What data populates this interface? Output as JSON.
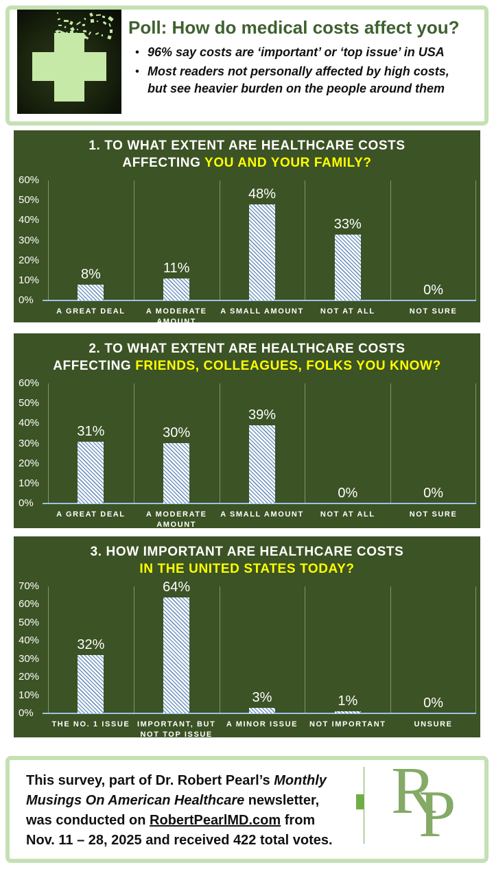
{
  "header": {
    "title": "Poll: How do medical costs affect you?",
    "bullets": [
      "96% say costs are ‘important’ or ‘top issue’ in USA",
      "Most readers not personally affected by high costs, but see heavier burden on the people around them"
    ],
    "logo_icon": "medical-cross-dissolving-icon"
  },
  "chart_data": [
    {
      "type": "bar",
      "title": "1. TO WHAT EXTENT ARE HEALTHCARE COSTS AFFECTING YOU AND YOUR FAMILY?",
      "title_line1": "1. TO WHAT EXTENT ARE HEALTHCARE COSTS",
      "title_line2_prefix": "AFFECTING ",
      "title_line2_highlight": "YOU AND YOUR FAMILY?",
      "categories": [
        "A GREAT DEAL",
        "A MODERATE AMOUNT",
        "A SMALL AMOUNT",
        "NOT AT ALL",
        "NOT SURE"
      ],
      "values": [
        8,
        11,
        48,
        33,
        0
      ],
      "value_labels": [
        "8%",
        "11%",
        "48%",
        "33%",
        "0%"
      ],
      "ylim": [
        0,
        60
      ],
      "yticks": [
        "60%",
        "50%",
        "40%",
        "30%",
        "20%",
        "10%",
        "0%"
      ],
      "grid": "vertical-category-separators",
      "legend": "none",
      "bar_style": "white-blue-diagonal-hatch"
    },
    {
      "type": "bar",
      "title": "2. TO WHAT EXTENT ARE HEALTHCARE COSTS AFFECTING FRIENDS, COLLEAGUES, FOLKS YOU KNOW?",
      "title_line1": "2. TO WHAT EXTENT ARE HEALTHCARE COSTS",
      "title_line2_prefix": "AFFECTING ",
      "title_line2_highlight": "FRIENDS, COLLEAGUES, FOLKS YOU KNOW?",
      "categories": [
        "A GREAT DEAL",
        "A MODERATE AMOUNT",
        "A SMALL AMOUNT",
        "NOT AT ALL",
        "NOT SURE"
      ],
      "values": [
        31,
        30,
        39,
        0,
        0
      ],
      "value_labels": [
        "31%",
        "30%",
        "39%",
        "0%",
        "0%"
      ],
      "ylim": [
        0,
        60
      ],
      "yticks": [
        "60%",
        "50%",
        "40%",
        "30%",
        "20%",
        "10%",
        "0%"
      ],
      "grid": "vertical-category-separators",
      "legend": "none",
      "bar_style": "white-blue-diagonal-hatch"
    },
    {
      "type": "bar",
      "title": "3. HOW IMPORTANT ARE HEALTHCARE COSTS IN THE UNITED STATES TODAY?",
      "title_line1": "3. HOW IMPORTANT ARE HEALTHCARE COSTS",
      "title_line2_prefix": "",
      "title_line2_highlight": "IN THE UNITED STATES TODAY?",
      "categories": [
        "THE NO. 1 ISSUE",
        "IMPORTANT, BUT NOT TOP ISSUE",
        "A MINOR ISSUE",
        "NOT IMPORTANT",
        "UNSURE"
      ],
      "values": [
        32,
        64,
        3,
        1,
        0
      ],
      "value_labels": [
        "32%",
        "64%",
        "3%",
        "1%",
        "0%"
      ],
      "ylim": [
        0,
        70
      ],
      "yticks": [
        "70%",
        "60%",
        "50%",
        "40%",
        "30%",
        "20%",
        "10%",
        "0%"
      ],
      "grid": "vertical-category-separators",
      "legend": "none",
      "bar_style": "white-blue-diagonal-hatch"
    }
  ],
  "footer": {
    "lines": [
      [
        {
          "t": "This survey, part of Dr. Robert Pearl’s ",
          "s": "b"
        },
        {
          "t": "Monthly",
          "s": "bi"
        }
      ],
      [
        {
          "t": "Musings On American Healthcare",
          "s": "bi"
        },
        {
          "t": " newsletter,",
          "s": "b"
        }
      ],
      [
        {
          "t": "was conducted on ",
          "s": "b"
        },
        {
          "t": "RobertPearlMD.com",
          "s": "bu"
        },
        {
          "t": " from",
          "s": "b"
        }
      ],
      [
        {
          "t": "Nov. 11 – 28, 2025 and received 422 total votes.",
          "s": "b"
        }
      ]
    ],
    "monogram": "RP"
  },
  "colors": {
    "panel_green": "#3c5325",
    "accent_yellow": "#ffff00",
    "title_green": "#3e612f",
    "border_green": "#c5e0b3",
    "axis_blue": "#9dc3e6",
    "hatch_blue": "#7295bf",
    "logo_green": "#c6e9a8",
    "monogram_green": "#84aa66",
    "divider_green": "#70ad47"
  }
}
